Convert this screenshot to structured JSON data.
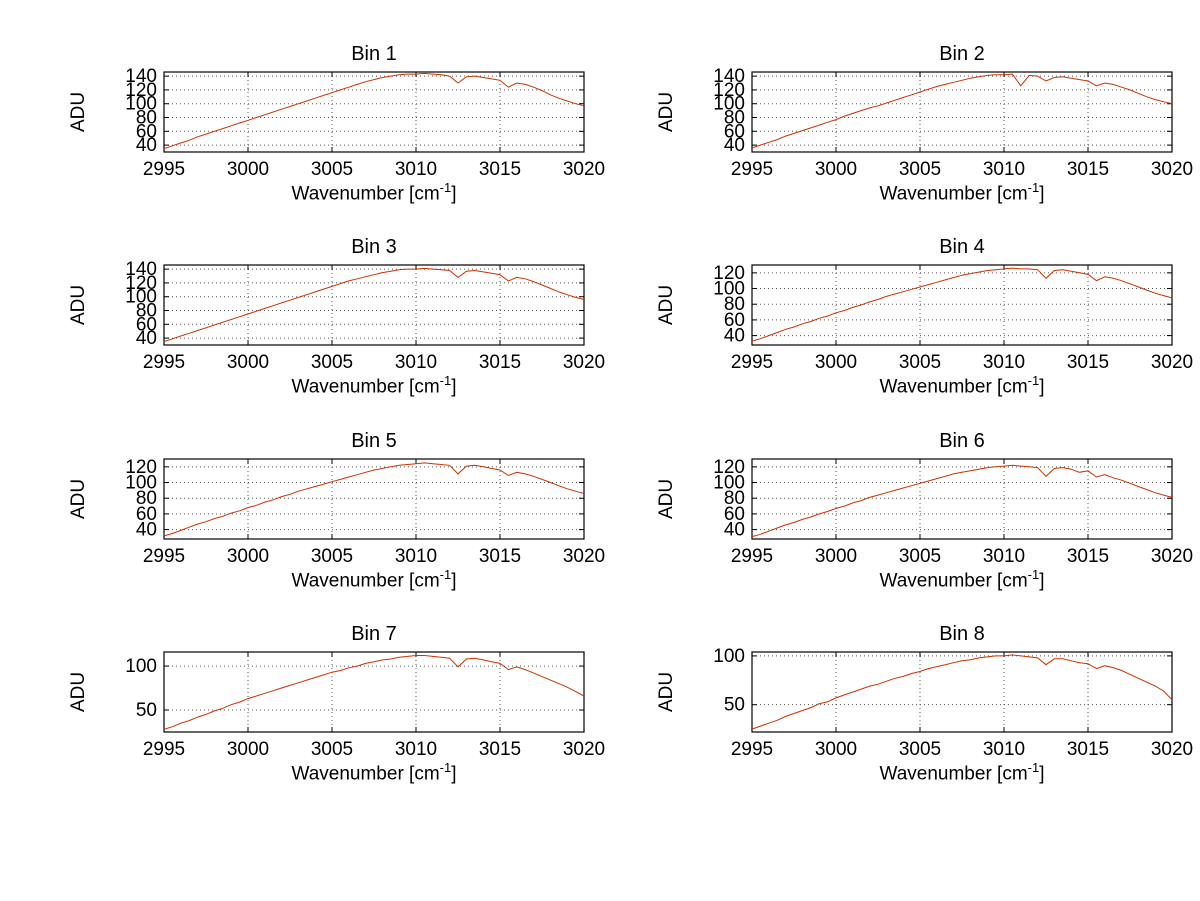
{
  "figure": {
    "background": "#ffffff"
  },
  "labels": {
    "ylabel": "ADU",
    "xlabel_pre": "Wavenumber [cm",
    "xlabel_sup": "-1",
    "xlabel_post": "]"
  },
  "axis_style": {
    "line_color": "#cc3300",
    "grid_color": "#555555",
    "tick_color": "#000000",
    "grid": "dotted",
    "legend": "none"
  },
  "chart_data": [
    {
      "type": "line",
      "title": "Bin 1",
      "xlabel": "Wavenumber [cm^-1]",
      "ylabel": "ADU",
      "xlim": [
        2995,
        3020
      ],
      "ylim": [
        30,
        146
      ],
      "xticks": [
        2995,
        3000,
        3005,
        3010,
        3015,
        3020
      ],
      "yticks": [
        40,
        60,
        80,
        100,
        120,
        140
      ],
      "x_start": 2995,
      "x_step": 0.5,
      "y": [
        35,
        39,
        43,
        47,
        52,
        56,
        60,
        64,
        68,
        72,
        76,
        80,
        84,
        88,
        92,
        96,
        100,
        104,
        108,
        112,
        116,
        120,
        124,
        128,
        132,
        135,
        138,
        140,
        142,
        143,
        143,
        144,
        143,
        142,
        140,
        130,
        139,
        140,
        138,
        136,
        134,
        124,
        130,
        128,
        124,
        119,
        113,
        108,
        104,
        100,
        97
      ]
    },
    {
      "type": "line",
      "title": "Bin 2",
      "xlabel": "Wavenumber [cm^-1]",
      "ylabel": "ADU",
      "xlim": [
        2995,
        3020
      ],
      "ylim": [
        30,
        146
      ],
      "xticks": [
        2995,
        3000,
        3005,
        3010,
        3015,
        3020
      ],
      "yticks": [
        40,
        60,
        80,
        100,
        120,
        140
      ],
      "x_start": 2995,
      "x_step": 0.5,
      "y": [
        36,
        40,
        44,
        48,
        53,
        57,
        61,
        65,
        69,
        73,
        77,
        82,
        86,
        90,
        94,
        97,
        101,
        105,
        109,
        113,
        117,
        121,
        125,
        128,
        131,
        134,
        137,
        139,
        141,
        142,
        142,
        143,
        126,
        141,
        140,
        133,
        138,
        139,
        137,
        135,
        133,
        126,
        130,
        128,
        124,
        120,
        115,
        110,
        106,
        103,
        100
      ]
    },
    {
      "type": "line",
      "title": "Bin 3",
      "xlabel": "Wavenumber [cm^-1]",
      "ylabel": "ADU",
      "xlim": [
        2995,
        3020
      ],
      "ylim": [
        30,
        146
      ],
      "xticks": [
        2995,
        3000,
        3005,
        3010,
        3015,
        3020
      ],
      "yticks": [
        40,
        60,
        80,
        100,
        120,
        140
      ],
      "x_start": 2995,
      "x_step": 0.5,
      "y": [
        35,
        39,
        43,
        47,
        51,
        55,
        59,
        63,
        67,
        71,
        75,
        79,
        83,
        87,
        91,
        95,
        99,
        103,
        107,
        111,
        115,
        119,
        123,
        126,
        129,
        132,
        135,
        137,
        139,
        140,
        140,
        141,
        140,
        139,
        138,
        128,
        137,
        138,
        136,
        134,
        132,
        123,
        128,
        126,
        122,
        117,
        112,
        107,
        103,
        99,
        96
      ]
    },
    {
      "type": "line",
      "title": "Bin 4",
      "xlabel": "Wavenumber [cm^-1]",
      "ylabel": "ADU",
      "xlim": [
        2995,
        3020
      ],
      "ylim": [
        28,
        130
      ],
      "xticks": [
        2995,
        3000,
        3005,
        3010,
        3015,
        3020
      ],
      "yticks": [
        40,
        60,
        80,
        100,
        120
      ],
      "x_start": 2995,
      "x_step": 0.5,
      "y": [
        33,
        36,
        40,
        44,
        48,
        51,
        55,
        58,
        62,
        65,
        69,
        72,
        76,
        79,
        83,
        86,
        90,
        93,
        96,
        99,
        102,
        105,
        108,
        111,
        114,
        117,
        119,
        121,
        123,
        124,
        125,
        126,
        125,
        125,
        124,
        113,
        123,
        124,
        122,
        120,
        118,
        110,
        115,
        113,
        110,
        106,
        102,
        98,
        94,
        91,
        88
      ]
    },
    {
      "type": "line",
      "title": "Bin 5",
      "xlabel": "Wavenumber [cm^-1]",
      "ylabel": "ADU",
      "xlim": [
        2995,
        3020
      ],
      "ylim": [
        28,
        130
      ],
      "xticks": [
        2995,
        3000,
        3005,
        3010,
        3015,
        3020
      ],
      "yticks": [
        40,
        60,
        80,
        100,
        120
      ],
      "x_start": 2995,
      "x_step": 0.5,
      "y": [
        32,
        35,
        39,
        43,
        47,
        50,
        54,
        57,
        61,
        64,
        68,
        71,
        75,
        78,
        82,
        85,
        89,
        92,
        95,
        98,
        101,
        104,
        107,
        110,
        113,
        116,
        118,
        120,
        122,
        123,
        124,
        125,
        124,
        123,
        122,
        111,
        121,
        122,
        120,
        118,
        116,
        109,
        113,
        111,
        108,
        104,
        100,
        96,
        92,
        89,
        86
      ]
    },
    {
      "type": "line",
      "title": "Bin 6",
      "xlabel": "Wavenumber [cm^-1]",
      "ylabel": "ADU",
      "xlim": [
        2995,
        3020
      ],
      "ylim": [
        28,
        130
      ],
      "xticks": [
        2995,
        3000,
        3005,
        3010,
        3015,
        3020
      ],
      "yticks": [
        40,
        60,
        80,
        100,
        120
      ],
      "x_start": 2995,
      "x_step": 0.5,
      "y": [
        31,
        34,
        38,
        42,
        46,
        49,
        53,
        56,
        60,
        63,
        67,
        70,
        74,
        77,
        81,
        84,
        87,
        90,
        93,
        96,
        99,
        102,
        105,
        108,
        111,
        113,
        115,
        117,
        119,
        120,
        121,
        122,
        121,
        120,
        119,
        108,
        118,
        119,
        117,
        113,
        115,
        107,
        110,
        106,
        103,
        99,
        95,
        91,
        87,
        84,
        81
      ]
    },
    {
      "type": "line",
      "title": "Bin 7",
      "xlabel": "Wavenumber [cm^-1]",
      "ylabel": "ADU",
      "xlim": [
        2995,
        3020
      ],
      "ylim": [
        25,
        116
      ],
      "xticks": [
        2995,
        3000,
        3005,
        3010,
        3015,
        3020
      ],
      "yticks": [
        50,
        100
      ],
      "x_start": 2995,
      "x_step": 0.5,
      "y": [
        28,
        31,
        35,
        38,
        42,
        45,
        49,
        52,
        56,
        59,
        63,
        66,
        69,
        72,
        75,
        78,
        81,
        84,
        87,
        90,
        93,
        95,
        98,
        100,
        103,
        105,
        107,
        108,
        110,
        111,
        112,
        112,
        111,
        110,
        109,
        99,
        108,
        109,
        107,
        105,
        103,
        96,
        99,
        96,
        92,
        88,
        84,
        80,
        76,
        71,
        66
      ]
    },
    {
      "type": "line",
      "title": "Bin 8",
      "xlabel": "Wavenumber [cm^-1]",
      "ylabel": "ADU",
      "xlim": [
        2995,
        3020
      ],
      "ylim": [
        22,
        104
      ],
      "xticks": [
        2995,
        3000,
        3005,
        3010,
        3015,
        3020
      ],
      "yticks": [
        50,
        100
      ],
      "x_start": 2995,
      "x_step": 0.5,
      "y": [
        25,
        28,
        31,
        34,
        38,
        41,
        44,
        47,
        51,
        53,
        57,
        60,
        63,
        66,
        69,
        71,
        74,
        77,
        79,
        82,
        84,
        87,
        89,
        91,
        93,
        95,
        96,
        98,
        99,
        100,
        100,
        101,
        100,
        99,
        98,
        91,
        97,
        97,
        95,
        93,
        92,
        87,
        90,
        88,
        85,
        81,
        77,
        73,
        69,
        64,
        55
      ]
    }
  ]
}
